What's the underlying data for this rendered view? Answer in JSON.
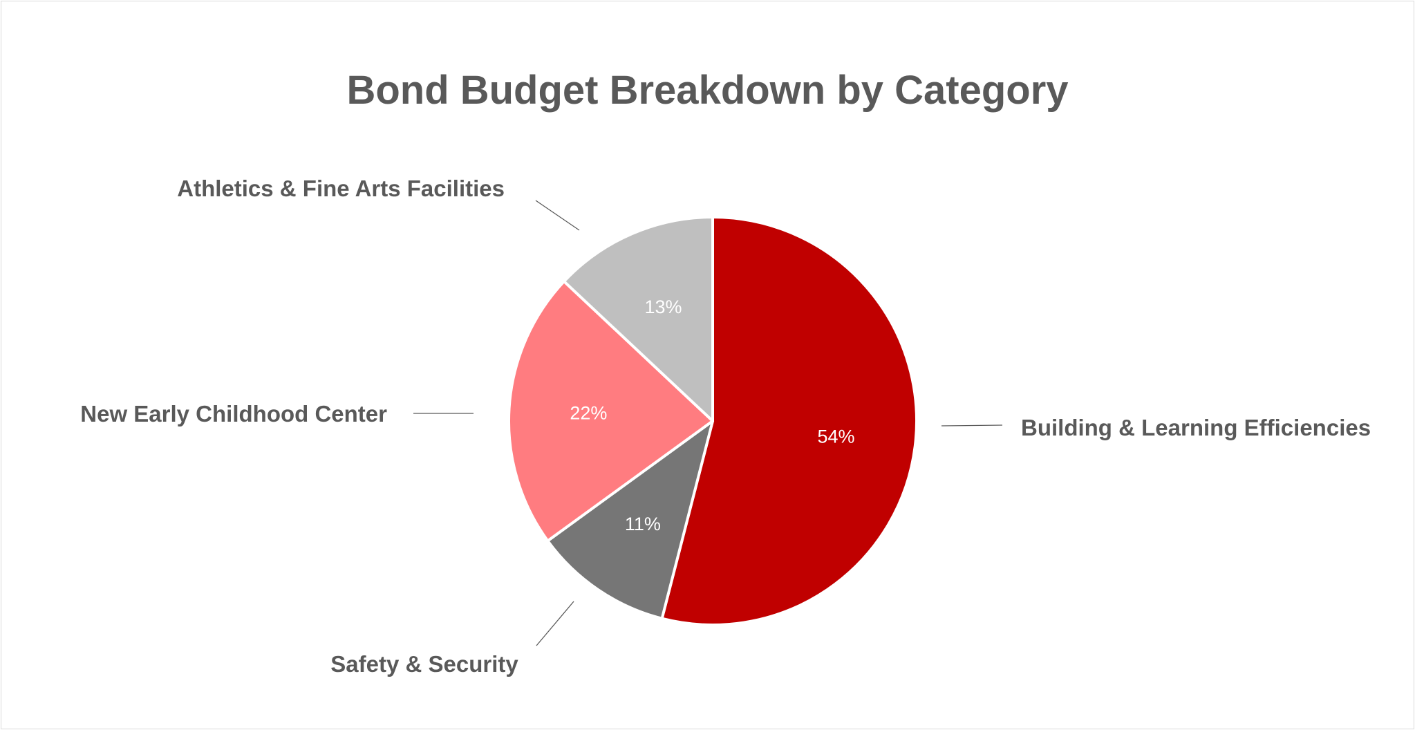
{
  "chart_data": {
    "type": "pie",
    "title": "Bond Budget Breakdown by Category",
    "categories": [
      "Building & Learning Efficiencies",
      "Safety & Security",
      "New Early Childhood Center",
      "Athletics & Fine Arts Facilities"
    ],
    "values": [
      54,
      11,
      22,
      13
    ],
    "value_labels": [
      "54%",
      "11%",
      "22%",
      "13%"
    ],
    "colors": [
      "#c00000",
      "#767676",
      "#ff7c80",
      "#bfbfbf"
    ],
    "start_angle_deg": 0,
    "direction": "clockwise",
    "legend": "none",
    "category_labels": "outside-with-leader-lines"
  }
}
